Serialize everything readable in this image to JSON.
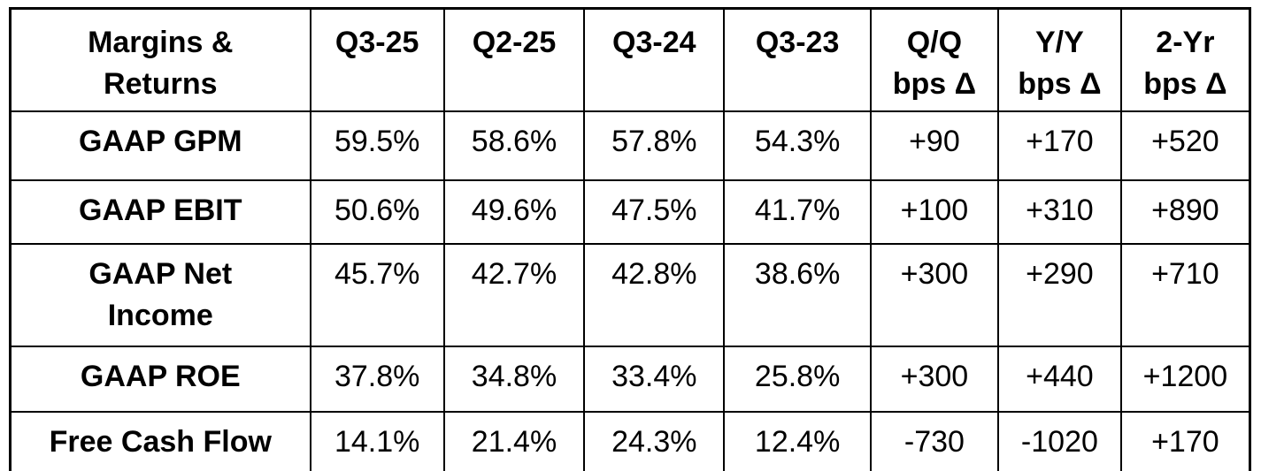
{
  "colors": {
    "background": "#ffffff",
    "border": "#000000",
    "text": "#000000"
  },
  "chart_data": {
    "type": "table",
    "title": "Margins & Returns",
    "columns": [
      "Margins &\nReturns",
      "Q3-25",
      "Q2-25",
      "Q3-24",
      "Q3-23",
      "Q/Q\nbps Δ",
      "Y/Y\nbps Δ",
      "2-Yr\nbps Δ"
    ],
    "rows": [
      [
        "GAAP GPM",
        "59.5%",
        "58.6%",
        "57.8%",
        "54.3%",
        "+90",
        "+170",
        "+520"
      ],
      [
        "GAAP EBIT",
        "50.6%",
        "49.6%",
        "47.5%",
        "41.7%",
        "+100",
        "+310",
        "+890"
      ],
      [
        "GAAP Net\nIncome",
        "45.7%",
        "42.7%",
        "42.8%",
        "38.6%",
        "+300",
        "+290",
        "+710"
      ],
      [
        "GAAP ROE",
        "37.8%",
        "34.8%",
        "33.4%",
        "25.8%",
        "+300",
        "+440",
        "+1200"
      ],
      [
        "Free Cash Flow",
        "14.1%",
        "21.4%",
        "24.3%",
        "12.4%",
        "-730",
        "-1020",
        "+170"
      ]
    ]
  }
}
